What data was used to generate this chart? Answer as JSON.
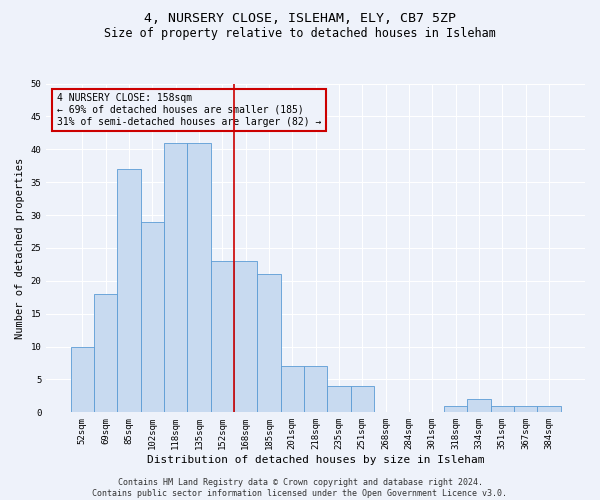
{
  "title1": "4, NURSERY CLOSE, ISLEHAM, ELY, CB7 5ZP",
  "title2": "Size of property relative to detached houses in Isleham",
  "xlabel": "Distribution of detached houses by size in Isleham",
  "ylabel": "Number of detached properties",
  "categories": [
    "52sqm",
    "69sqm",
    "85sqm",
    "102sqm",
    "118sqm",
    "135sqm",
    "152sqm",
    "168sqm",
    "185sqm",
    "201sqm",
    "218sqm",
    "235sqm",
    "251sqm",
    "268sqm",
    "284sqm",
    "301sqm",
    "318sqm",
    "334sqm",
    "351sqm",
    "367sqm",
    "384sqm"
  ],
  "values": [
    10,
    18,
    37,
    29,
    41,
    41,
    23,
    23,
    21,
    7,
    7,
    4,
    4,
    0,
    0,
    0,
    1,
    2,
    1,
    1,
    1
  ],
  "bar_color": "#c8daf0",
  "bar_edge_color": "#5b9bd5",
  "vline_x": 6.5,
  "vline_color": "#cc0000",
  "annotation_text": "4 NURSERY CLOSE: 158sqm\n← 69% of detached houses are smaller (185)\n31% of semi-detached houses are larger (82) →",
  "annotation_box_color": "#cc0000",
  "ylim": [
    0,
    50
  ],
  "yticks": [
    0,
    5,
    10,
    15,
    20,
    25,
    30,
    35,
    40,
    45,
    50
  ],
  "footer1": "Contains HM Land Registry data © Crown copyright and database right 2024.",
  "footer2": "Contains public sector information licensed under the Open Government Licence v3.0.",
  "background_color": "#eef2fa",
  "grid_color": "#ffffff",
  "title1_fontsize": 9.5,
  "title2_fontsize": 8.5,
  "xlabel_fontsize": 8,
  "ylabel_fontsize": 7.5,
  "tick_fontsize": 6.5,
  "annotation_fontsize": 7,
  "footer_fontsize": 6
}
